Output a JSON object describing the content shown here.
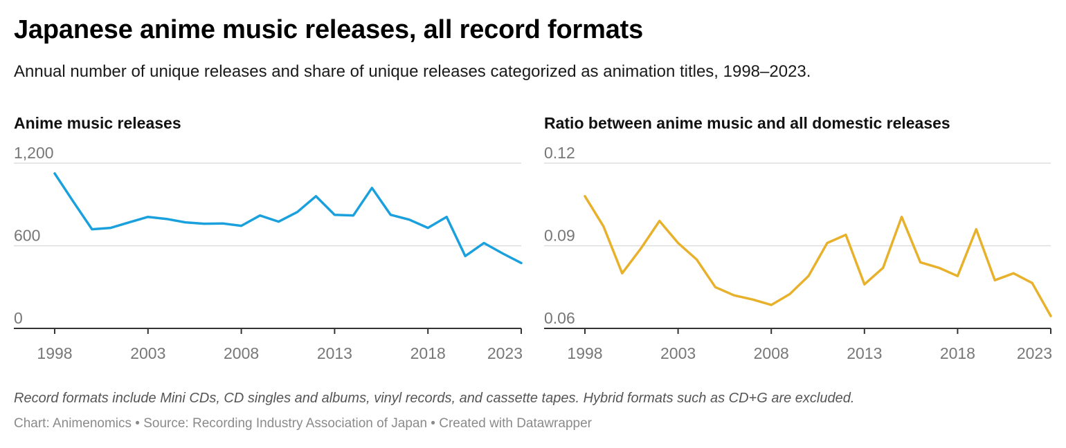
{
  "header": {
    "title": "Japanese anime music releases, all record formats",
    "subtitle": "Annual number of unique releases and share of unique releases categorized as animation titles, 1998–2023."
  },
  "footer": {
    "notes": "Record formats include Mini CDs, CD singles and albums, vinyl records, and cassette tapes. Hybrid formats such as CD+G are excluded.",
    "chart_credit": "Chart: Animenomics",
    "source": "Source: Recording Industry Association of Japan",
    "created_with": "Created with Datawrapper",
    "separator": " • "
  },
  "colors": {
    "left_line": "#1aa0dc",
    "right_line": "#e8b12c",
    "gridline": "#dddddd",
    "axis": "#333333",
    "tick_text": "#777777"
  },
  "chart_data": [
    {
      "type": "line",
      "title": "Anime music releases",
      "xlabel": "",
      "ylabel": "",
      "x": [
        1998,
        1999,
        2000,
        2001,
        2002,
        2003,
        2004,
        2005,
        2006,
        2007,
        2008,
        2009,
        2010,
        2011,
        2012,
        2013,
        2014,
        2015,
        2016,
        2017,
        2018,
        2019,
        2020,
        2021,
        2022,
        2023
      ],
      "series": [
        {
          "name": "Anime music releases",
          "values": [
            1125,
            920,
            720,
            730,
            770,
            810,
            795,
            770,
            760,
            762,
            745,
            820,
            775,
            845,
            960,
            825,
            820,
            1020,
            825,
            790,
            730,
            810,
            525,
            620,
            545,
            475
          ]
        }
      ],
      "ylim": [
        0,
        1200
      ],
      "yticks": [
        0,
        600,
        1200
      ],
      "ytick_labels": [
        "0",
        "600",
        "1,200"
      ],
      "xticks": [
        1998,
        2003,
        2008,
        2013,
        2018,
        2023
      ],
      "xtick_labels": [
        "1998",
        "2003",
        "2008",
        "2013",
        "2018",
        "2023"
      ]
    },
    {
      "type": "line",
      "title": "Ratio between anime music and all domestic releases",
      "xlabel": "",
      "ylabel": "",
      "x": [
        1998,
        1999,
        2000,
        2001,
        2002,
        2003,
        2004,
        2005,
        2006,
        2007,
        2008,
        2009,
        2010,
        2011,
        2012,
        2013,
        2014,
        2015,
        2016,
        2017,
        2018,
        2019,
        2020,
        2021,
        2022,
        2023
      ],
      "series": [
        {
          "name": "Ratio",
          "values": [
            0.108,
            0.097,
            0.08,
            0.089,
            0.099,
            0.091,
            0.085,
            0.075,
            0.072,
            0.0705,
            0.0685,
            0.0725,
            0.079,
            0.091,
            0.094,
            0.076,
            0.082,
            0.1005,
            0.084,
            0.082,
            0.079,
            0.096,
            0.0775,
            0.08,
            0.0765,
            0.0645
          ]
        }
      ],
      "ylim": [
        0.06,
        0.12
      ],
      "yticks": [
        0.06,
        0.09,
        0.12
      ],
      "ytick_labels": [
        "0.06",
        "0.09",
        "0.12"
      ],
      "xticks": [
        1998,
        2003,
        2008,
        2013,
        2018,
        2023
      ],
      "xtick_labels": [
        "1998",
        "2003",
        "2008",
        "2013",
        "2018",
        "2023"
      ]
    }
  ]
}
